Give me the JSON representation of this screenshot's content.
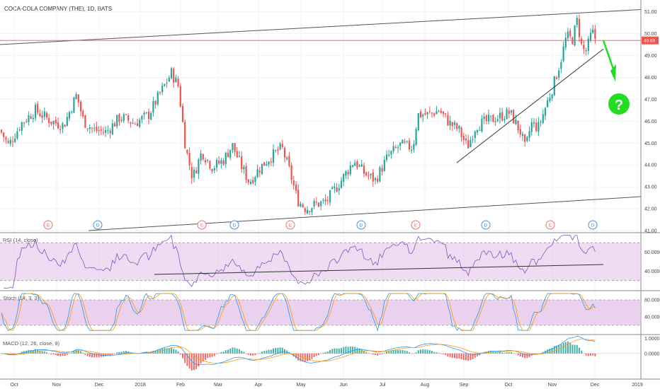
{
  "header": {
    "title": "COCA-COLA COMPANY (THE), 1D, BATS"
  },
  "price_axis": {
    "ticks": [
      "51.00",
      "50.00",
      "49.00",
      "48.00",
      "47.00",
      "46.00",
      "45.00",
      "44.00",
      "43.00",
      "42.00",
      "41.00"
    ],
    "last_price": "49.69",
    "last_price_color": "#ef5350"
  },
  "indicators": {
    "rsi": {
      "label": "RSI (14, close)",
      "ticks": [
        "60.0000",
        "40.0000"
      ]
    },
    "stoch": {
      "label": "Stoch (14, 3, 3)",
      "ticks": [
        "80.0000",
        "40.0000"
      ]
    },
    "macd": {
      "label": "MACD (12, 26, close, 9)",
      "ticks": [
        "1.0000",
        "0.0000"
      ]
    }
  },
  "time_axis": {
    "labels": [
      "Oct",
      "Nov",
      "Dec",
      "2018",
      "Feb",
      "Mar",
      "Apr",
      "May",
      "Jun",
      "Jul",
      "Aug",
      "Sep",
      "Oct",
      "Nov",
      "Dec",
      "2019"
    ]
  },
  "events": [
    {
      "label": "E",
      "color": "#e57373"
    },
    {
      "label": "D",
      "color": "#4a90d9"
    },
    {
      "label": "E",
      "color": "#e57373"
    },
    {
      "label": "D",
      "color": "#4a90d9"
    },
    {
      "label": "E",
      "color": "#e57373"
    },
    {
      "label": "D",
      "color": "#4a90d9"
    },
    {
      "label": "E",
      "color": "#e57373"
    },
    {
      "label": "D",
      "color": "#4a90d9"
    },
    {
      "label": "E",
      "color": "#e57373"
    },
    {
      "label": "D",
      "color": "#4a90d9"
    }
  ],
  "annotation": {
    "text": "?",
    "color": "#22dd22"
  },
  "colors": {
    "up": "#26a69a",
    "down": "#ef5350",
    "rsi": "#7e57c2",
    "stoch_k": "#2196f3",
    "stoch_d": "#ff9800",
    "band": "#e1bee7",
    "hline": "#ef5350"
  },
  "chart_data": {
    "type": "candlestick",
    "title": "COCA-COLA COMPANY (THE), 1D, BATS",
    "ylim": [
      41.0,
      51.15
    ],
    "key_points": {
      "x": [
        "Oct",
        "Nov",
        "Dec",
        "2018",
        "Feb",
        "Mar",
        "Apr",
        "May",
        "Jun",
        "Jul",
        "Aug",
        "Sep",
        "Oct",
        "Nov",
        "Dec"
      ],
      "close": [
        45.6,
        46.2,
        45.9,
        46.0,
        47.9,
        44.8,
        44.2,
        43.9,
        42.2,
        43.2,
        44.9,
        46.4,
        45.8,
        47.7,
        49.69
      ]
    },
    "last_close": 49.69,
    "rsi_range": [
      20,
      80
    ],
    "stoch_range": [
      0,
      100
    ],
    "macd_range": [
      -1.5,
      1.2
    ]
  }
}
